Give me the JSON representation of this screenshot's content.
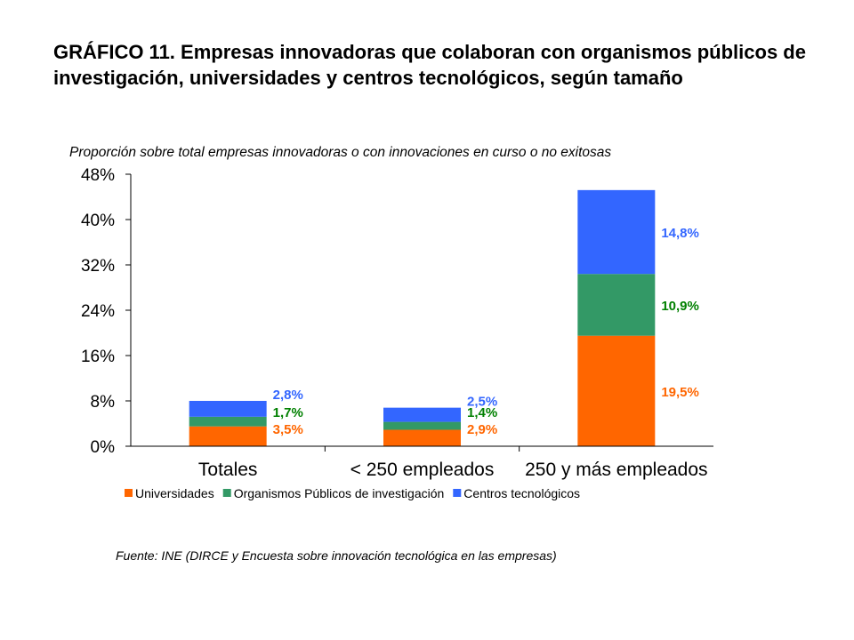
{
  "title": "GRÁFICO 11. Empresas innovadoras que colaboran con organismos públicos de investigación, universidades y centros tecnológicos, según tamaño",
  "source": "Fuente: INE (DIRCE y Encuesta sobre innovación tecnológica en las empresas)",
  "chart_data": {
    "type": "bar",
    "stacked": true,
    "subtitle": "Proporción sobre total empresas innovadoras o con innovaciones en curso o no exitosas",
    "categories": [
      "Totales",
      "< 250 empleados",
      "250 y más empleados"
    ],
    "series": [
      {
        "name": "Universidades",
        "values": [
          3.5,
          2.9,
          19.5
        ],
        "labels": [
          "3,5%",
          "2,9%",
          "19,5%"
        ],
        "color": "#ff6600",
        "label_color": "#ff6600"
      },
      {
        "name": "Organismos Públicos de investigación",
        "values": [
          1.7,
          1.4,
          10.9
        ],
        "labels": [
          "1,7%",
          "1,4%",
          "10,9%"
        ],
        "color": "#339966",
        "label_color": "#008000"
      },
      {
        "name": "Centros tecnológicos",
        "values": [
          2.8,
          2.5,
          14.8
        ],
        "labels": [
          "2,8%",
          "2,5%",
          "14,8%"
        ],
        "color": "#3366ff",
        "label_color": "#3366ff"
      }
    ],
    "yticks": [
      "0%",
      "8%",
      "16%",
      "24%",
      "32%",
      "40%",
      "48%"
    ],
    "ytick_values": [
      0,
      8,
      16,
      24,
      32,
      40,
      48
    ],
    "ylim": [
      0,
      48
    ],
    "grid": false,
    "legend_position": "bottom"
  }
}
